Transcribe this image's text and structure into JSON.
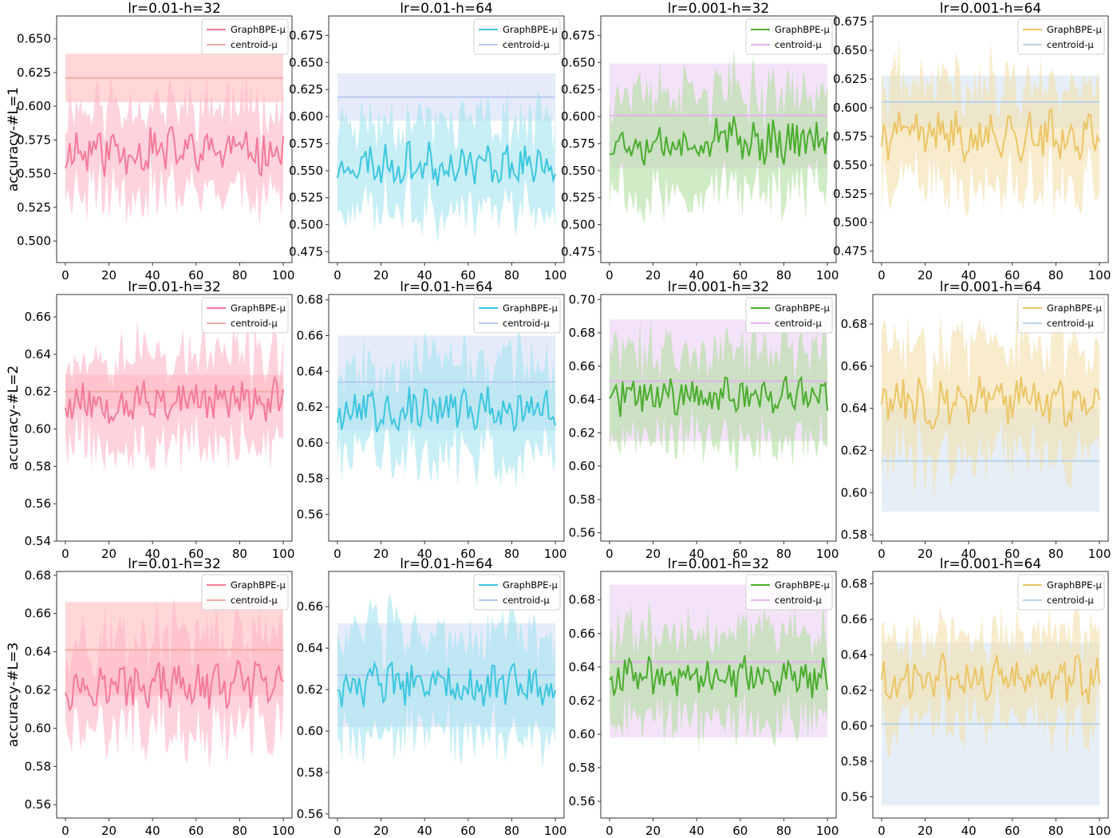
{
  "figure": {
    "series_names": {
      "main": "GraphBPE-μ",
      "baseline": "centroid-μ"
    },
    "row_labels": [
      "accuracy-#L=1",
      "accuracy-#L=2",
      "accuracy-#L=3"
    ],
    "column_titles": [
      "lr=0.01-h=32",
      "lr=0.01-h=64",
      "lr=0.001-h=32",
      "lr=0.001-h=64"
    ],
    "colors": {
      "pink_line": "#f47a98",
      "pink_band": "#ffb6c8",
      "centroid_pink_line": "#f6a9a4",
      "centroid_pink_band": "#ffc6c6",
      "cyan_line": "#3cc6df",
      "cyan_band": "#a3e4ef",
      "centroid_blue_line": "#b7c8f2",
      "centroid_blue_band": "#dbe3f7",
      "green_line": "#4aad2e",
      "green_band": "#b1e0a0",
      "centroid_purple_line": "#e3b3ef",
      "centroid_purple_band": "#efd6f6",
      "gold_line": "#ebc566",
      "gold_band": "#f4e0ab",
      "centroid_lightblue_line": "#b8d3ea",
      "centroid_lightblue_band": "#dbe8f4"
    }
  },
  "chart_data": [
    {
      "type": "line",
      "row": 0,
      "col": 0,
      "title": "lr=0.01-h=32",
      "ylabel": "accuracy-#L=1",
      "xlabel": "",
      "xlim": [
        0,
        100
      ],
      "xticks": [
        0,
        20,
        40,
        60,
        80,
        100
      ],
      "ylim": [
        0.484,
        0.667
      ],
      "yticks": [
        0.5,
        0.525,
        0.55,
        0.575,
        0.6,
        0.625,
        0.65
      ],
      "ytick_labels": [
        "0.500",
        "0.525",
        "0.550",
        "0.575",
        "0.600",
        "0.625",
        "0.650"
      ],
      "series": [
        {
          "name": "GraphBPE-μ",
          "mean": 0.567,
          "amp": 0.015,
          "band": 0.034,
          "seed": 11,
          "line": "pink_line",
          "fill": "pink_band"
        },
        {
          "name": "centroid-μ",
          "value": 0.621,
          "band_lo": 0.603,
          "band_hi": 0.639,
          "line": "centroid_pink_line",
          "fill": "centroid_pink_band"
        }
      ],
      "legend": "top-right"
    },
    {
      "type": "line",
      "row": 0,
      "col": 1,
      "title": "lr=0.01-h=64",
      "ylabel": "",
      "xlabel": "",
      "xlim": [
        0,
        100
      ],
      "xticks": [
        0,
        20,
        40,
        60,
        80,
        100
      ],
      "ylim": [
        0.465,
        0.693
      ],
      "yticks": [
        0.475,
        0.5,
        0.525,
        0.55,
        0.575,
        0.6,
        0.625,
        0.65,
        0.675
      ],
      "ytick_labels": [
        "0.475",
        "0.500",
        "0.525",
        "0.550",
        "0.575",
        "0.600",
        "0.625",
        "0.650",
        "0.675"
      ],
      "series": [
        {
          "name": "GraphBPE-μ",
          "mean": 0.556,
          "amp": 0.016,
          "band": 0.04,
          "seed": 23,
          "line": "cyan_line",
          "fill": "cyan_band"
        },
        {
          "name": "centroid-μ",
          "value": 0.618,
          "band_lo": 0.596,
          "band_hi": 0.64,
          "line": "centroid_blue_line",
          "fill": "centroid_blue_band"
        }
      ],
      "legend": "top-right"
    },
    {
      "type": "line",
      "row": 0,
      "col": 2,
      "title": "lr=0.001-h=32",
      "ylabel": "",
      "xlabel": "",
      "xlim": [
        0,
        100
      ],
      "xticks": [
        0,
        20,
        40,
        60,
        80,
        100
      ],
      "ylim": [
        0.465,
        0.693
      ],
      "yticks": [
        0.475,
        0.5,
        0.525,
        0.55,
        0.575,
        0.6,
        0.625,
        0.65,
        0.675
      ],
      "ytick_labels": [
        "0.475",
        "0.500",
        "0.525",
        "0.550",
        "0.575",
        "0.600",
        "0.625",
        "0.650",
        "0.675"
      ],
      "series": [
        {
          "name": "GraphBPE-μ",
          "mean": 0.578,
          "amp": 0.018,
          "band": 0.045,
          "seed": 37,
          "line": "green_line",
          "fill": "green_band"
        },
        {
          "name": "centroid-μ",
          "value": 0.601,
          "band_lo": 0.552,
          "band_hi": 0.649,
          "line": "centroid_purple_line",
          "fill": "centroid_purple_band"
        }
      ],
      "legend": "top-right"
    },
    {
      "type": "line",
      "row": 0,
      "col": 3,
      "title": "lr=0.001-h=64",
      "ylabel": "",
      "xlabel": "",
      "xlim": [
        0,
        100
      ],
      "xticks": [
        0,
        20,
        40,
        60,
        80,
        100
      ],
      "ylim": [
        0.465,
        0.68
      ],
      "yticks": [
        0.475,
        0.5,
        0.525,
        0.55,
        0.575,
        0.6,
        0.625,
        0.65,
        0.675
      ],
      "ytick_labels": [
        "0.475",
        "0.500",
        "0.525",
        "0.550",
        "0.575",
        "0.600",
        "0.625",
        "0.650",
        "0.675"
      ],
      "series": [
        {
          "name": "GraphBPE-μ",
          "mean": 0.576,
          "amp": 0.018,
          "band": 0.045,
          "seed": 41,
          "line": "gold_line",
          "fill": "gold_band"
        },
        {
          "name": "centroid-μ",
          "value": 0.605,
          "band_lo": 0.582,
          "band_hi": 0.628,
          "line": "centroid_lightblue_line",
          "fill": "centroid_lightblue_band"
        }
      ],
      "legend": "top-right"
    },
    {
      "type": "line",
      "row": 1,
      "col": 0,
      "title": "lr=0.01-h=32",
      "ylabel": "accuracy-#L=2",
      "xlabel": "",
      "xlim": [
        0,
        100
      ],
      "xticks": [
        0,
        20,
        40,
        60,
        80,
        100
      ],
      "ylim": [
        0.54,
        0.672
      ],
      "yticks": [
        0.54,
        0.56,
        0.58,
        0.6,
        0.62,
        0.64,
        0.66
      ],
      "ytick_labels": [
        "0.54",
        "0.56",
        "0.58",
        "0.60",
        "0.62",
        "0.64",
        "0.66"
      ],
      "series": [
        {
          "name": "GraphBPE-μ",
          "mean": 0.615,
          "amp": 0.01,
          "band": 0.025,
          "seed": 53,
          "line": "pink_line",
          "fill": "pink_band"
        },
        {
          "name": "centroid-μ",
          "value": 0.62,
          "band_lo": 0.611,
          "band_hi": 0.629,
          "line": "centroid_pink_line",
          "fill": "centroid_pink_band"
        }
      ],
      "legend": "top-right"
    },
    {
      "type": "line",
      "row": 1,
      "col": 1,
      "title": "lr=0.01-h=64",
      "ylabel": "",
      "xlabel": "",
      "xlim": [
        0,
        100
      ],
      "xticks": [
        0,
        20,
        40,
        60,
        80,
        100
      ],
      "ylim": [
        0.545,
        0.683
      ],
      "yticks": [
        0.56,
        0.58,
        0.6,
        0.62,
        0.64,
        0.66,
        0.68
      ],
      "ytick_labels": [
        "0.56",
        "0.58",
        "0.60",
        "0.62",
        "0.64",
        "0.66",
        "0.68"
      ],
      "series": [
        {
          "name": "GraphBPE-μ",
          "mean": 0.619,
          "amp": 0.01,
          "band": 0.026,
          "seed": 67,
          "line": "cyan_line",
          "fill": "cyan_band"
        },
        {
          "name": "centroid-μ",
          "value": 0.634,
          "band_lo": 0.607,
          "band_hi": 0.66,
          "line": "centroid_blue_line",
          "fill": "centroid_blue_band"
        }
      ],
      "legend": "top-right"
    },
    {
      "type": "line",
      "row": 1,
      "col": 2,
      "title": "lr=0.001-h=32",
      "ylabel": "",
      "xlabel": "",
      "xlim": [
        0,
        100
      ],
      "xticks": [
        0,
        20,
        40,
        60,
        80,
        100
      ],
      "ylim": [
        0.555,
        0.703
      ],
      "yticks": [
        0.56,
        0.58,
        0.6,
        0.62,
        0.64,
        0.66,
        0.68,
        0.7
      ],
      "ytick_labels": [
        "0.56",
        "0.58",
        "0.60",
        "0.62",
        "0.64",
        "0.66",
        "0.68",
        "0.70"
      ],
      "series": [
        {
          "name": "GraphBPE-μ",
          "mean": 0.642,
          "amp": 0.01,
          "band": 0.028,
          "seed": 71,
          "line": "green_line",
          "fill": "green_band"
        },
        {
          "name": "centroid-μ",
          "value": 0.651,
          "band_lo": 0.615,
          "band_hi": 0.688,
          "line": "centroid_purple_line",
          "fill": "centroid_purple_band"
        }
      ],
      "legend": "top-right"
    },
    {
      "type": "line",
      "row": 1,
      "col": 3,
      "title": "lr=0.001-h=64",
      "ylabel": "",
      "xlabel": "",
      "xlim": [
        0,
        100
      ],
      "xticks": [
        0,
        20,
        40,
        60,
        80,
        100
      ],
      "ylim": [
        0.577,
        0.694
      ],
      "yticks": [
        0.58,
        0.6,
        0.62,
        0.64,
        0.66,
        0.68
      ],
      "ytick_labels": [
        "0.58",
        "0.60",
        "0.62",
        "0.64",
        "0.66",
        "0.68"
      ],
      "series": [
        {
          "name": "GraphBPE-μ",
          "mean": 0.643,
          "amp": 0.01,
          "band": 0.027,
          "seed": 83,
          "line": "gold_line",
          "fill": "gold_band"
        },
        {
          "name": "centroid-μ",
          "value": 0.615,
          "band_lo": 0.591,
          "band_hi": 0.64,
          "line": "centroid_lightblue_line",
          "fill": "centroid_lightblue_band"
        }
      ],
      "legend": "top-right"
    },
    {
      "type": "line",
      "row": 2,
      "col": 0,
      "title": "lr=0.01-h=32",
      "ylabel": "accuracy-#L=3",
      "xlabel": "",
      "xlim": [
        0,
        100
      ],
      "xticks": [
        0,
        20,
        40,
        60,
        80,
        100
      ],
      "ylim": [
        0.553,
        0.682
      ],
      "yticks": [
        0.56,
        0.58,
        0.6,
        0.62,
        0.64,
        0.66,
        0.68
      ],
      "ytick_labels": [
        "0.56",
        "0.58",
        "0.60",
        "0.62",
        "0.64",
        "0.66",
        "0.68"
      ],
      "series": [
        {
          "name": "GraphBPE-μ",
          "mean": 0.622,
          "amp": 0.01,
          "band": 0.026,
          "seed": 97,
          "line": "pink_line",
          "fill": "pink_band"
        },
        {
          "name": "centroid-μ",
          "value": 0.641,
          "band_lo": 0.617,
          "band_hi": 0.666,
          "line": "centroid_pink_line",
          "fill": "centroid_pink_band"
        }
      ],
      "legend": "top-right"
    },
    {
      "type": "line",
      "row": 2,
      "col": 1,
      "title": "lr=0.01-h=64",
      "ylabel": "",
      "xlabel": "",
      "xlim": [
        0,
        100
      ],
      "xticks": [
        0,
        20,
        40,
        60,
        80,
        100
      ],
      "ylim": [
        0.558,
        0.677
      ],
      "yticks": [
        0.56,
        0.58,
        0.6,
        0.62,
        0.64,
        0.66
      ],
      "ytick_labels": [
        "0.56",
        "0.58",
        "0.60",
        "0.62",
        "0.64",
        "0.66"
      ],
      "series": [
        {
          "name": "GraphBPE-μ",
          "mean": 0.622,
          "amp": 0.009,
          "band": 0.024,
          "seed": 103,
          "line": "cyan_line",
          "fill": "cyan_band"
        },
        {
          "name": "centroid-μ",
          "value": 0.627,
          "band_lo": 0.602,
          "band_hi": 0.652,
          "line": "centroid_blue_line",
          "fill": "centroid_blue_band"
        }
      ],
      "legend": "top-right"
    },
    {
      "type": "line",
      "row": 2,
      "col": 2,
      "title": "lr=0.001-h=32",
      "ylabel": "",
      "xlabel": "",
      "xlim": [
        0,
        100
      ],
      "xticks": [
        0,
        20,
        40,
        60,
        80,
        100
      ],
      "ylim": [
        0.55,
        0.697
      ],
      "yticks": [
        0.56,
        0.58,
        0.6,
        0.62,
        0.64,
        0.66,
        0.68
      ],
      "ytick_labels": [
        "0.56",
        "0.58",
        "0.60",
        "0.62",
        "0.64",
        "0.66",
        "0.68"
      ],
      "series": [
        {
          "name": "GraphBPE-μ",
          "mean": 0.634,
          "amp": 0.01,
          "band": 0.027,
          "seed": 109,
          "line": "green_line",
          "fill": "green_band"
        },
        {
          "name": "centroid-μ",
          "value": 0.643,
          "band_lo": 0.598,
          "band_hi": 0.689,
          "line": "centroid_purple_line",
          "fill": "centroid_purple_band"
        }
      ],
      "legend": "top-right"
    },
    {
      "type": "line",
      "row": 2,
      "col": 3,
      "title": "lr=0.001-h=64",
      "ylabel": "",
      "xlabel": "",
      "xlim": [
        0,
        100
      ],
      "xticks": [
        0,
        20,
        40,
        60,
        80,
        100
      ],
      "ylim": [
        0.548,
        0.687
      ],
      "yticks": [
        0.56,
        0.58,
        0.6,
        0.62,
        0.64,
        0.66,
        0.68
      ],
      "ytick_labels": [
        "0.56",
        "0.58",
        "0.60",
        "0.62",
        "0.64",
        "0.66",
        "0.68"
      ],
      "series": [
        {
          "name": "GraphBPE-μ",
          "mean": 0.627,
          "amp": 0.011,
          "band": 0.025,
          "seed": 127,
          "line": "gold_line",
          "fill": "gold_band"
        },
        {
          "name": "centroid-μ",
          "value": 0.601,
          "band_lo": 0.555,
          "band_hi": 0.647,
          "line": "centroid_lightblue_line",
          "fill": "centroid_lightblue_band"
        }
      ],
      "legend": "top-right"
    }
  ]
}
